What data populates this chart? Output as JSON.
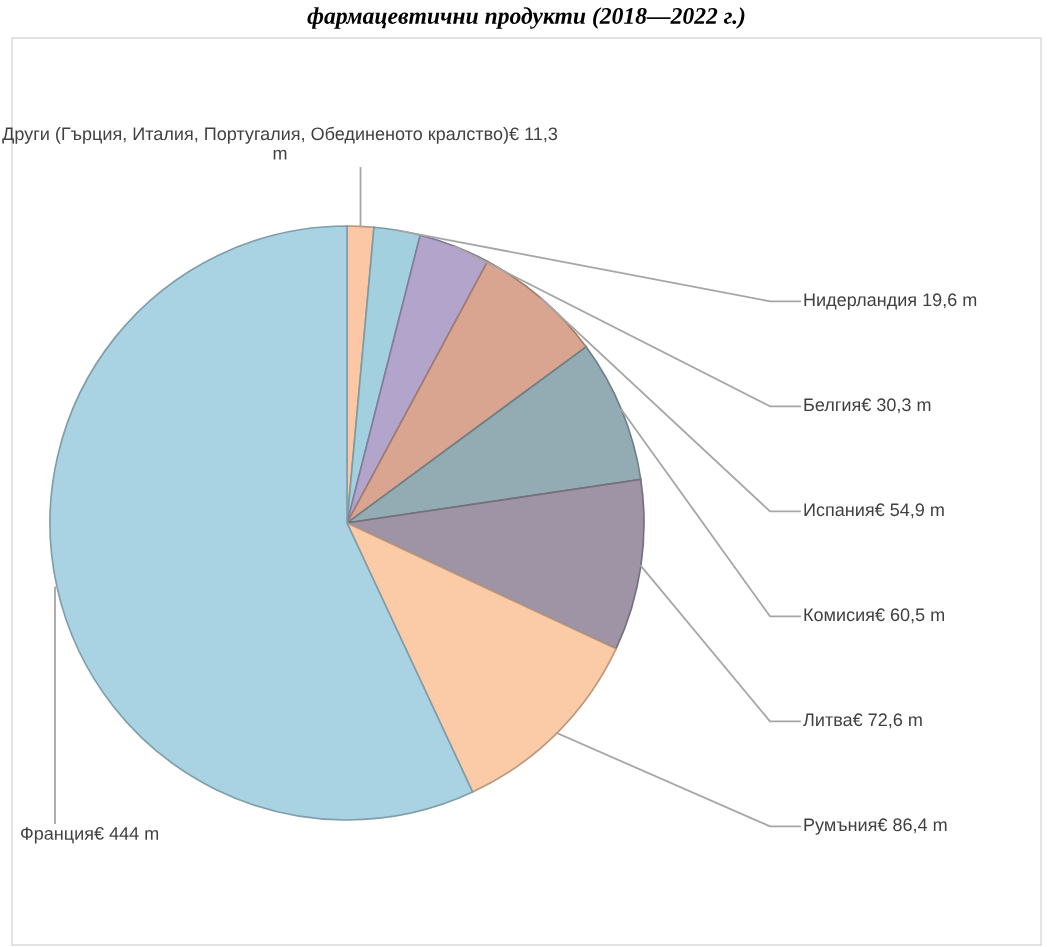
{
  "chart_data": {
    "type": "pie",
    "title": "фармацевтични продукти (2018—2022 г.)",
    "categories": [
      "Други (Гърция, Италия, Португалия, Обединеното кралство)",
      "Нидерландия",
      "Белгия",
      "Испания",
      "Комисия",
      "Литва",
      "Румъния",
      "Франция"
    ],
    "values": [
      11.3,
      19.6,
      30.3,
      54.9,
      60.5,
      72.6,
      86.4,
      444
    ],
    "value_labels": [
      "€ 11,3 m",
      " 19,6 m",
      "€ 30,3 m",
      "€ 54,9 m",
      "€ 60,5 m",
      "€ 72,6 m",
      "€ 86,4 m",
      "€ 444 m"
    ],
    "colors": [
      "#fbc7a4",
      "#a3d0df",
      "#b3a4cc",
      "#d9a591",
      "#93abb3",
      "#9e94a6",
      "#fbcaa6",
      "#a9d3e2"
    ],
    "legend": false
  }
}
